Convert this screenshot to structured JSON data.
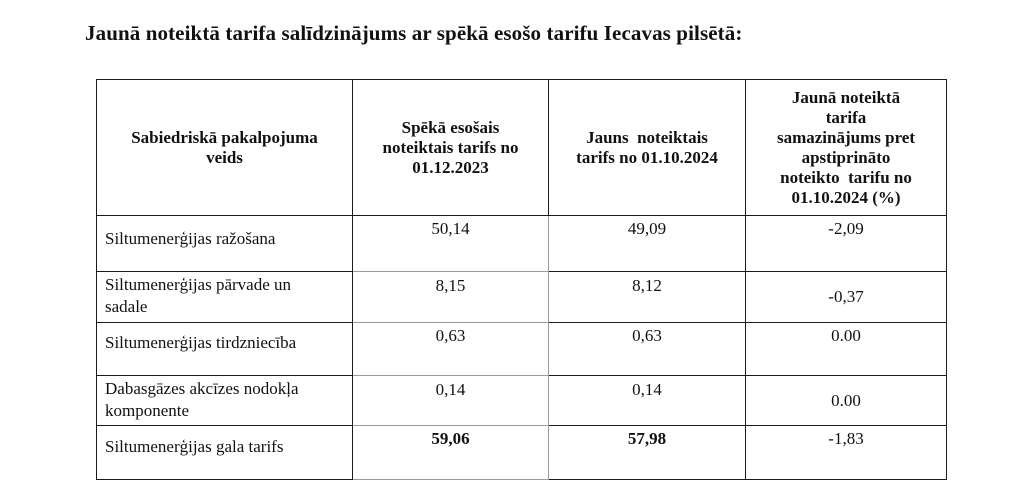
{
  "title": "Jaunā noteiktā tarifa salīdzinājums ar spēkā esošo tarifu Iecavas pilsētā:",
  "table": {
    "headers": [
      [
        "Sabiedriskā pakalpojuma",
        "veids"
      ],
      [
        "Spēkā esošais",
        "noteiktais tarifs no",
        "01.12.2023"
      ],
      [
        "Jauns  noteiktais",
        "tarifs no 01.10.2024"
      ],
      [
        "Jaunā noteiktā",
        "tarifa",
        "samazinājums pret",
        "apstiprināto",
        "noteikto  tarifu no",
        "01.10.2024 (%)"
      ]
    ],
    "rows": [
      {
        "service": [
          "Siltumenerģijas ražošana"
        ],
        "current": "50,14",
        "new": "49,09",
        "change": "-2,09"
      },
      {
        "service": [
          "Siltumenerģijas pārvade un",
          "sadale"
        ],
        "current": "8,15",
        "new": "8,12",
        "change": "-0,37"
      },
      {
        "service": [
          "Siltumenerģijas tirdzniecība"
        ],
        "current": "0,63",
        "new": "0,63",
        "change": "0.00"
      },
      {
        "service": [
          "Dabasgāzes akcīzes nodokļa",
          "komponente"
        ],
        "current": "0,14",
        "new": "0,14",
        "change": "0.00"
      },
      {
        "service": [
          "Siltumenerģijas gala tarifs"
        ],
        "current": "59,06",
        "new": "57,98",
        "change": "-1,83"
      }
    ]
  }
}
